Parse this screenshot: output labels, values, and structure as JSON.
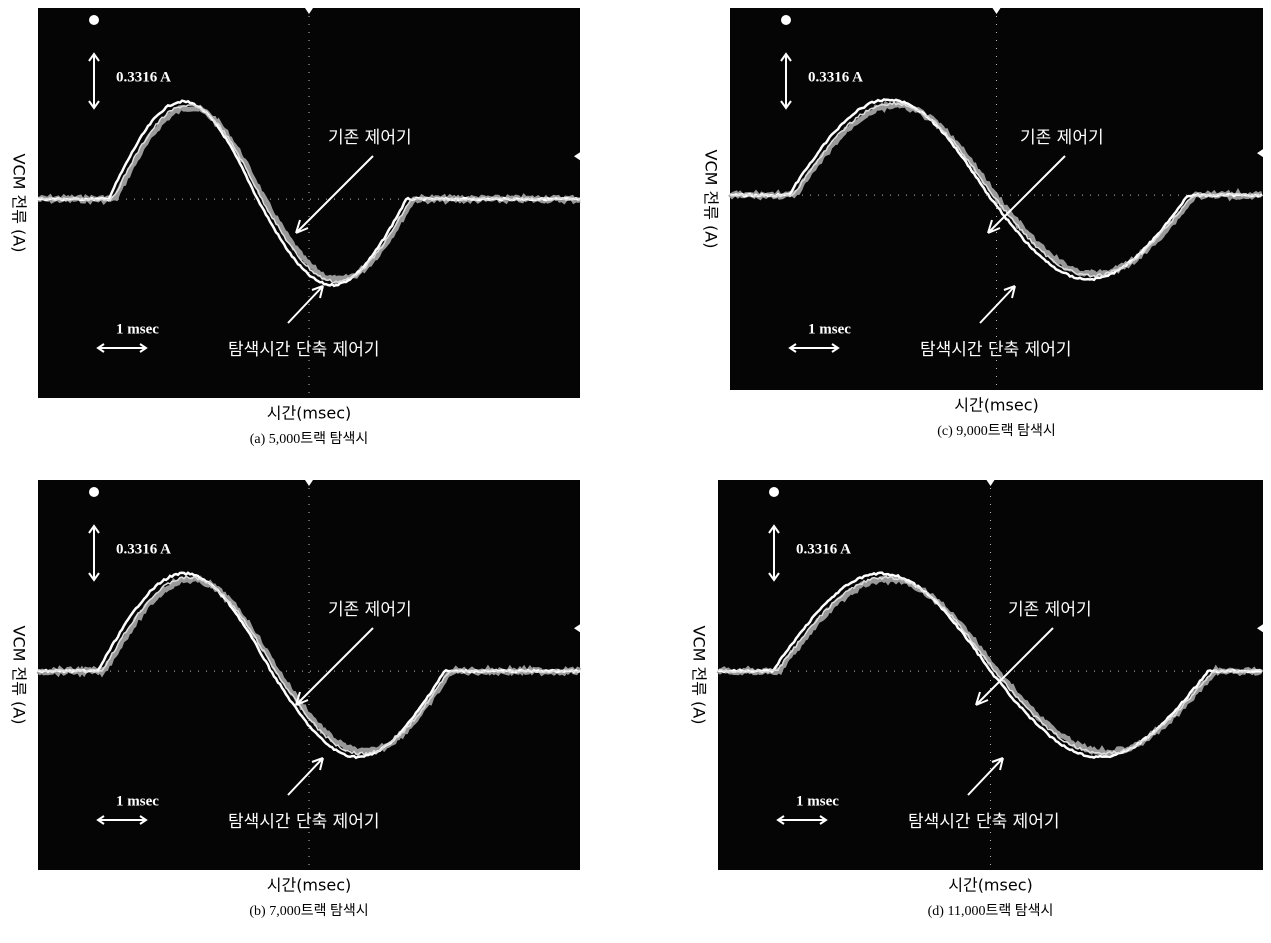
{
  "panels": [
    {
      "caption": "(a) 5,000트랙 탐색시",
      "x_label": "시간(msec)",
      "y_label": "VCM 전류 (A)",
      "scale_label": "0.3316 A",
      "time_label": "1 msec",
      "annotation_existing": "기존 제어기",
      "annotation_proposed": "탐색시간 단축 제어기"
    },
    {
      "caption": "(b) 7,000트랙 탐색시",
      "x_label": "시간(msec)",
      "y_label": "VCM 전류 (A)",
      "scale_label": "0.3316 A",
      "time_label": "1 msec",
      "annotation_existing": "기존 제어기",
      "annotation_proposed": "탐색시간 단축 제어기"
    },
    {
      "caption": "(c) 9,000트랙 탐색시",
      "x_label": "시간(msec)",
      "y_label": "VCM 전류 (A)",
      "scale_label": "0.3316 A",
      "time_label": "1 msec",
      "annotation_existing": "기존 제어기",
      "annotation_proposed": "탐색시간 단축 제어기"
    },
    {
      "caption": "(d) 11,000트랙 탐색시",
      "x_label": "시간(msec)",
      "y_label": "VCM 전류 (A)",
      "scale_label": "0.3316 A",
      "time_label": "1 msec",
      "annotation_existing": "기존 제어기",
      "annotation_proposed": "탐색시간 단축 제어기"
    }
  ]
}
